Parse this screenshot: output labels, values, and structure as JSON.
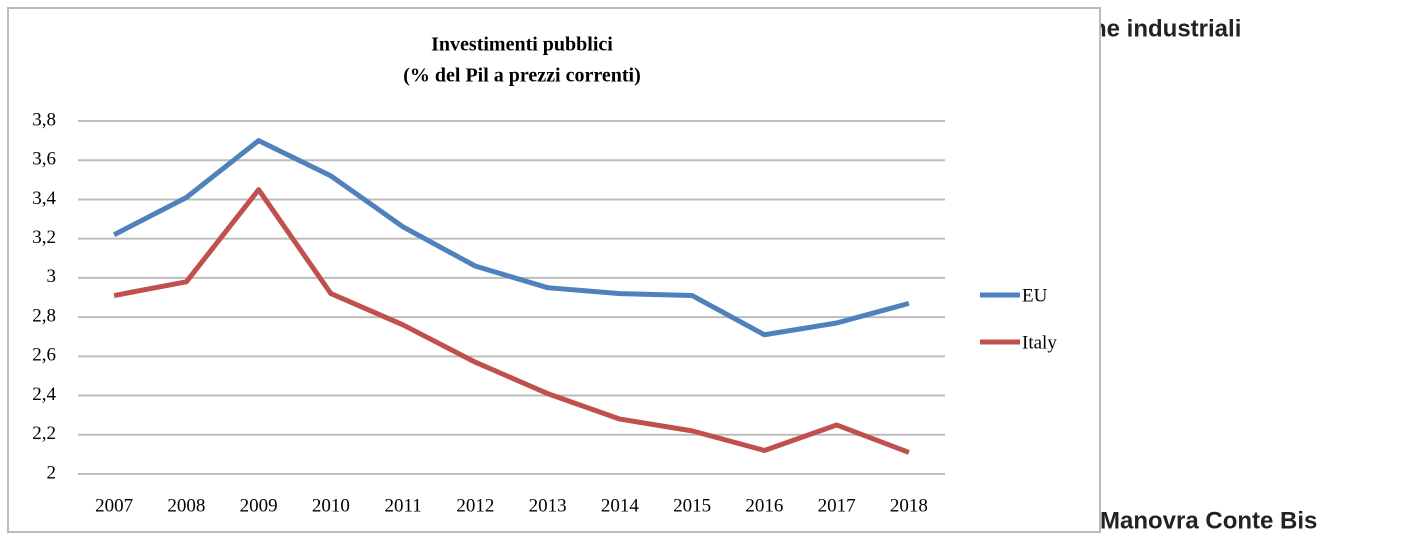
{
  "page": {
    "heading_fragment": "ne industriali",
    "footer_heading": "Manovra Conte Bis"
  },
  "chart_data": {
    "type": "line",
    "title": "Investimenti pubblici",
    "subtitle": "(% del Pil a prezzi correnti)",
    "categories": [
      "2007",
      "2008",
      "2009",
      "2010",
      "2011",
      "2012",
      "2013",
      "2014",
      "2015",
      "2016",
      "2017",
      "2018"
    ],
    "series": [
      {
        "name": "EU",
        "color": "#4f81bd",
        "values": [
          3.22,
          3.41,
          3.7,
          3.52,
          3.26,
          3.06,
          2.95,
          2.92,
          2.91,
          2.71,
          2.77,
          2.87
        ]
      },
      {
        "name": "Italy",
        "color": "#c0504d",
        "values": [
          2.91,
          2.98,
          3.45,
          2.92,
          2.76,
          2.57,
          2.41,
          2.28,
          2.22,
          2.12,
          2.25,
          2.11
        ]
      }
    ],
    "ylim": [
      2,
      3.8
    ],
    "yticks": [
      2,
      {
        "value": 2.2,
        "label": "2,2"
      },
      {
        "value": 2.4,
        "label": "2,4"
      },
      {
        "value": 2.6,
        "label": "2,6"
      },
      {
        "value": 2.8,
        "label": "2,8"
      },
      3,
      {
        "value": 3.2,
        "label": "3,2"
      },
      {
        "value": 3.4,
        "label": "3,4"
      },
      {
        "value": 3.6,
        "label": "3,6"
      },
      {
        "value": 3.8,
        "label": "3,8"
      }
    ],
    "grid": true,
    "legend": "right"
  }
}
